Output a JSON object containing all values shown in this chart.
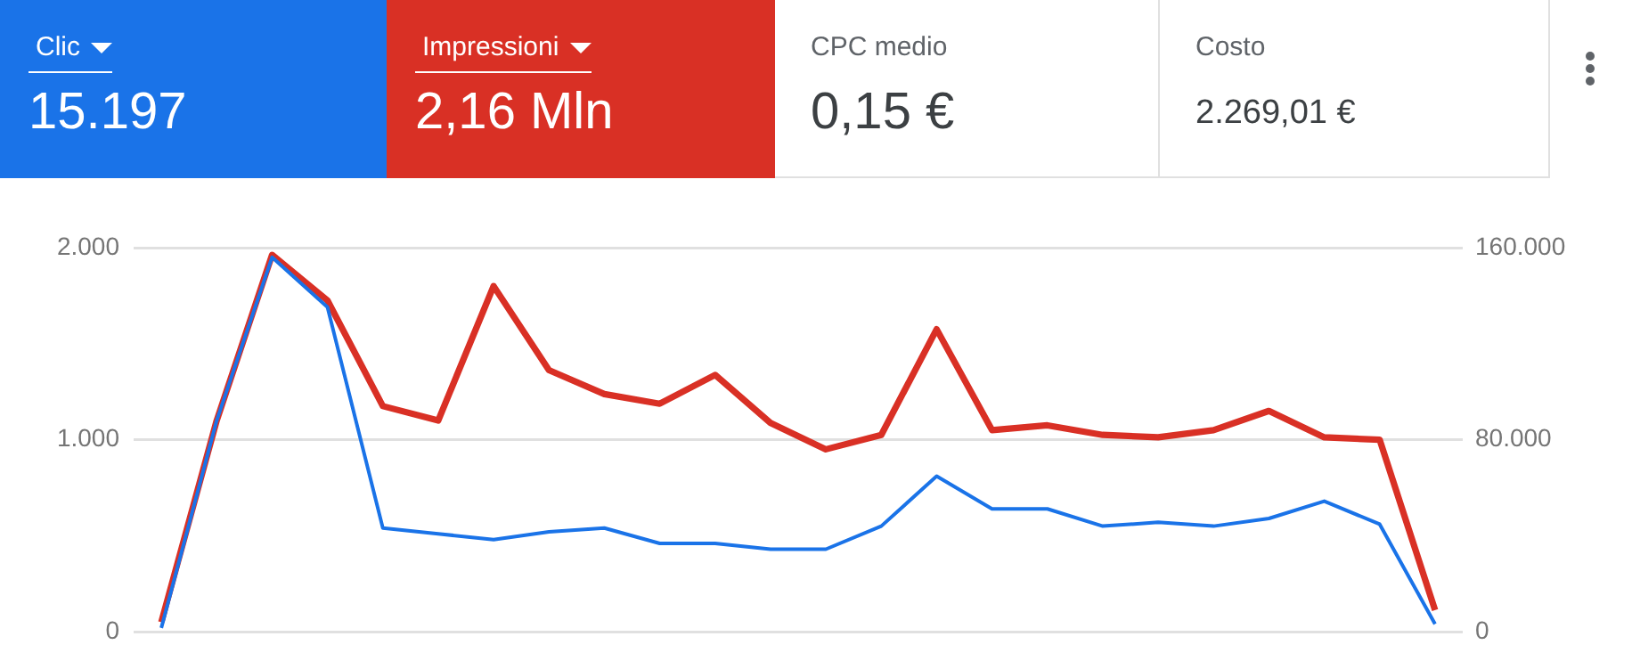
{
  "chart_data": {
    "type": "line",
    "categories": [
      null,
      null,
      null,
      null,
      null,
      null,
      null,
      null,
      null,
      null,
      null,
      null,
      null,
      null,
      null,
      null,
      null,
      null,
      null,
      null,
      null,
      null,
      null,
      null
    ],
    "series": [
      {
        "name": "Clic",
        "color": "#1a73e8",
        "values": [
          20,
          1100,
          1950,
          1690,
          540,
          510,
          480,
          520,
          540,
          460,
          460,
          430,
          430,
          550,
          810,
          640,
          640,
          550,
          570,
          550,
          590,
          680,
          560,
          40
        ]
      },
      {
        "name": "Impressioni",
        "color": "#d93025",
        "axis": "y2",
        "values": [
          4000,
          88000,
          157000,
          138000,
          94000,
          88000,
          144000,
          109000,
          99000,
          95000,
          107000,
          87000,
          76000,
          82000,
          126000,
          84000,
          86000,
          82000,
          81000,
          84000,
          92000,
          81000,
          80000,
          9000
        ]
      }
    ],
    "ylim": [
      0,
      2000
    ],
    "yticks": [
      0,
      {
        "value": 1000,
        "label": "1.000"
      },
      {
        "value": 2000,
        "label": "2.000"
      }
    ],
    "y2lim": [
      0,
      160000
    ],
    "y2ticks": [
      0,
      {
        "value": 80000,
        "label": "80.000"
      },
      {
        "value": 160000,
        "label": "160.000"
      }
    ],
    "grid": "y",
    "legend": "top left",
    "marker": "none",
    "line_style": "solid",
    "annotations": [
      "15.197",
      "2,16 Mln",
      "CPC medio",
      "0,15 €",
      "Costo",
      "2.269,01 €"
    ]
  }
}
